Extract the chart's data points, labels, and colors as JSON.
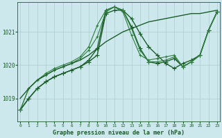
{
  "title": "Graphe pression niveau de la mer (hPa)",
  "xlabel_hours": [
    0,
    1,
    2,
    3,
    4,
    5,
    6,
    7,
    8,
    9,
    10,
    11,
    12,
    13,
    14,
    15,
    16,
    17,
    18,
    19,
    20,
    21,
    22,
    23
  ],
  "ylim": [
    1018.3,
    1021.9
  ],
  "yticks": [
    1019,
    1020,
    1021
  ],
  "bg_color": "#cce8ec",
  "grid_color": "#aacccc",
  "line_color_dark": "#1a5c28",
  "line_color_mid": "#2e7d3e",
  "series": [
    {
      "data": [
        1018.65,
        1019.0,
        1019.3,
        1019.5,
        1019.65,
        1019.75,
        1019.85,
        1019.95,
        1020.1,
        1020.3,
        1021.55,
        1021.65,
        1021.65,
        1021.4,
        1020.95,
        1020.55,
        1020.3,
        1020.05,
        1019.9,
        1020.05,
        1020.15,
        1020.3,
        1021.05,
        1021.6
      ],
      "color": "#1a5c28",
      "lw": 1.0,
      "marker": "+",
      "ms": 4
    },
    {
      "data": [
        1018.65,
        1019.0,
        1019.3,
        1019.5,
        1019.65,
        1019.75,
        1019.85,
        1019.95,
        1020.15,
        1020.5,
        1021.65,
        1021.75,
        1021.65,
        1021.15,
        1020.5,
        1020.1,
        1020.05,
        1020.1,
        1020.2,
        1019.95,
        1020.1,
        1020.3,
        1021.05,
        1021.6
      ],
      "color": "#1a5c28",
      "lw": 1.0,
      "marker": "+",
      "ms": 4
    },
    {
      "data": [
        1018.65,
        1019.3,
        1019.55,
        1019.75,
        1019.9,
        1020.0,
        1020.1,
        1020.25,
        1020.55,
        1021.2,
        1021.65,
        1021.75,
        1021.65,
        1021.1,
        1020.45,
        1020.1,
        1020.1,
        1020.15,
        1020.25,
        1019.95,
        1020.1,
        1020.3,
        1021.05,
        1021.6
      ],
      "color": "#2e7d3e",
      "lw": 0.8,
      "marker": "+",
      "ms": 3.5
    },
    {
      "data": [
        1018.65,
        1019.3,
        1019.55,
        1019.7,
        1019.85,
        1019.95,
        1020.05,
        1020.2,
        1020.45,
        1020.85,
        1021.6,
        1021.75,
        1021.6,
        1020.9,
        1020.3,
        1020.15,
        1020.2,
        1020.25,
        1020.3,
        1019.95,
        1020.1,
        1020.3,
        1021.05,
        1021.6
      ],
      "color": "#2e7d3e",
      "lw": 0.8,
      "marker": "+",
      "ms": 3.5
    },
    {
      "data": [
        1019.0,
        1019.3,
        1019.55,
        1019.7,
        1019.85,
        1019.95,
        1020.05,
        1020.15,
        1020.3,
        1020.5,
        1020.7,
        1020.85,
        1021.0,
        1021.1,
        1021.2,
        1021.3,
        1021.35,
        1021.4,
        1021.45,
        1021.5,
        1021.55,
        1021.55,
        1021.6,
        1021.65
      ],
      "color": "#1a5c28",
      "lw": 1.0,
      "marker": null,
      "ms": 0
    }
  ]
}
